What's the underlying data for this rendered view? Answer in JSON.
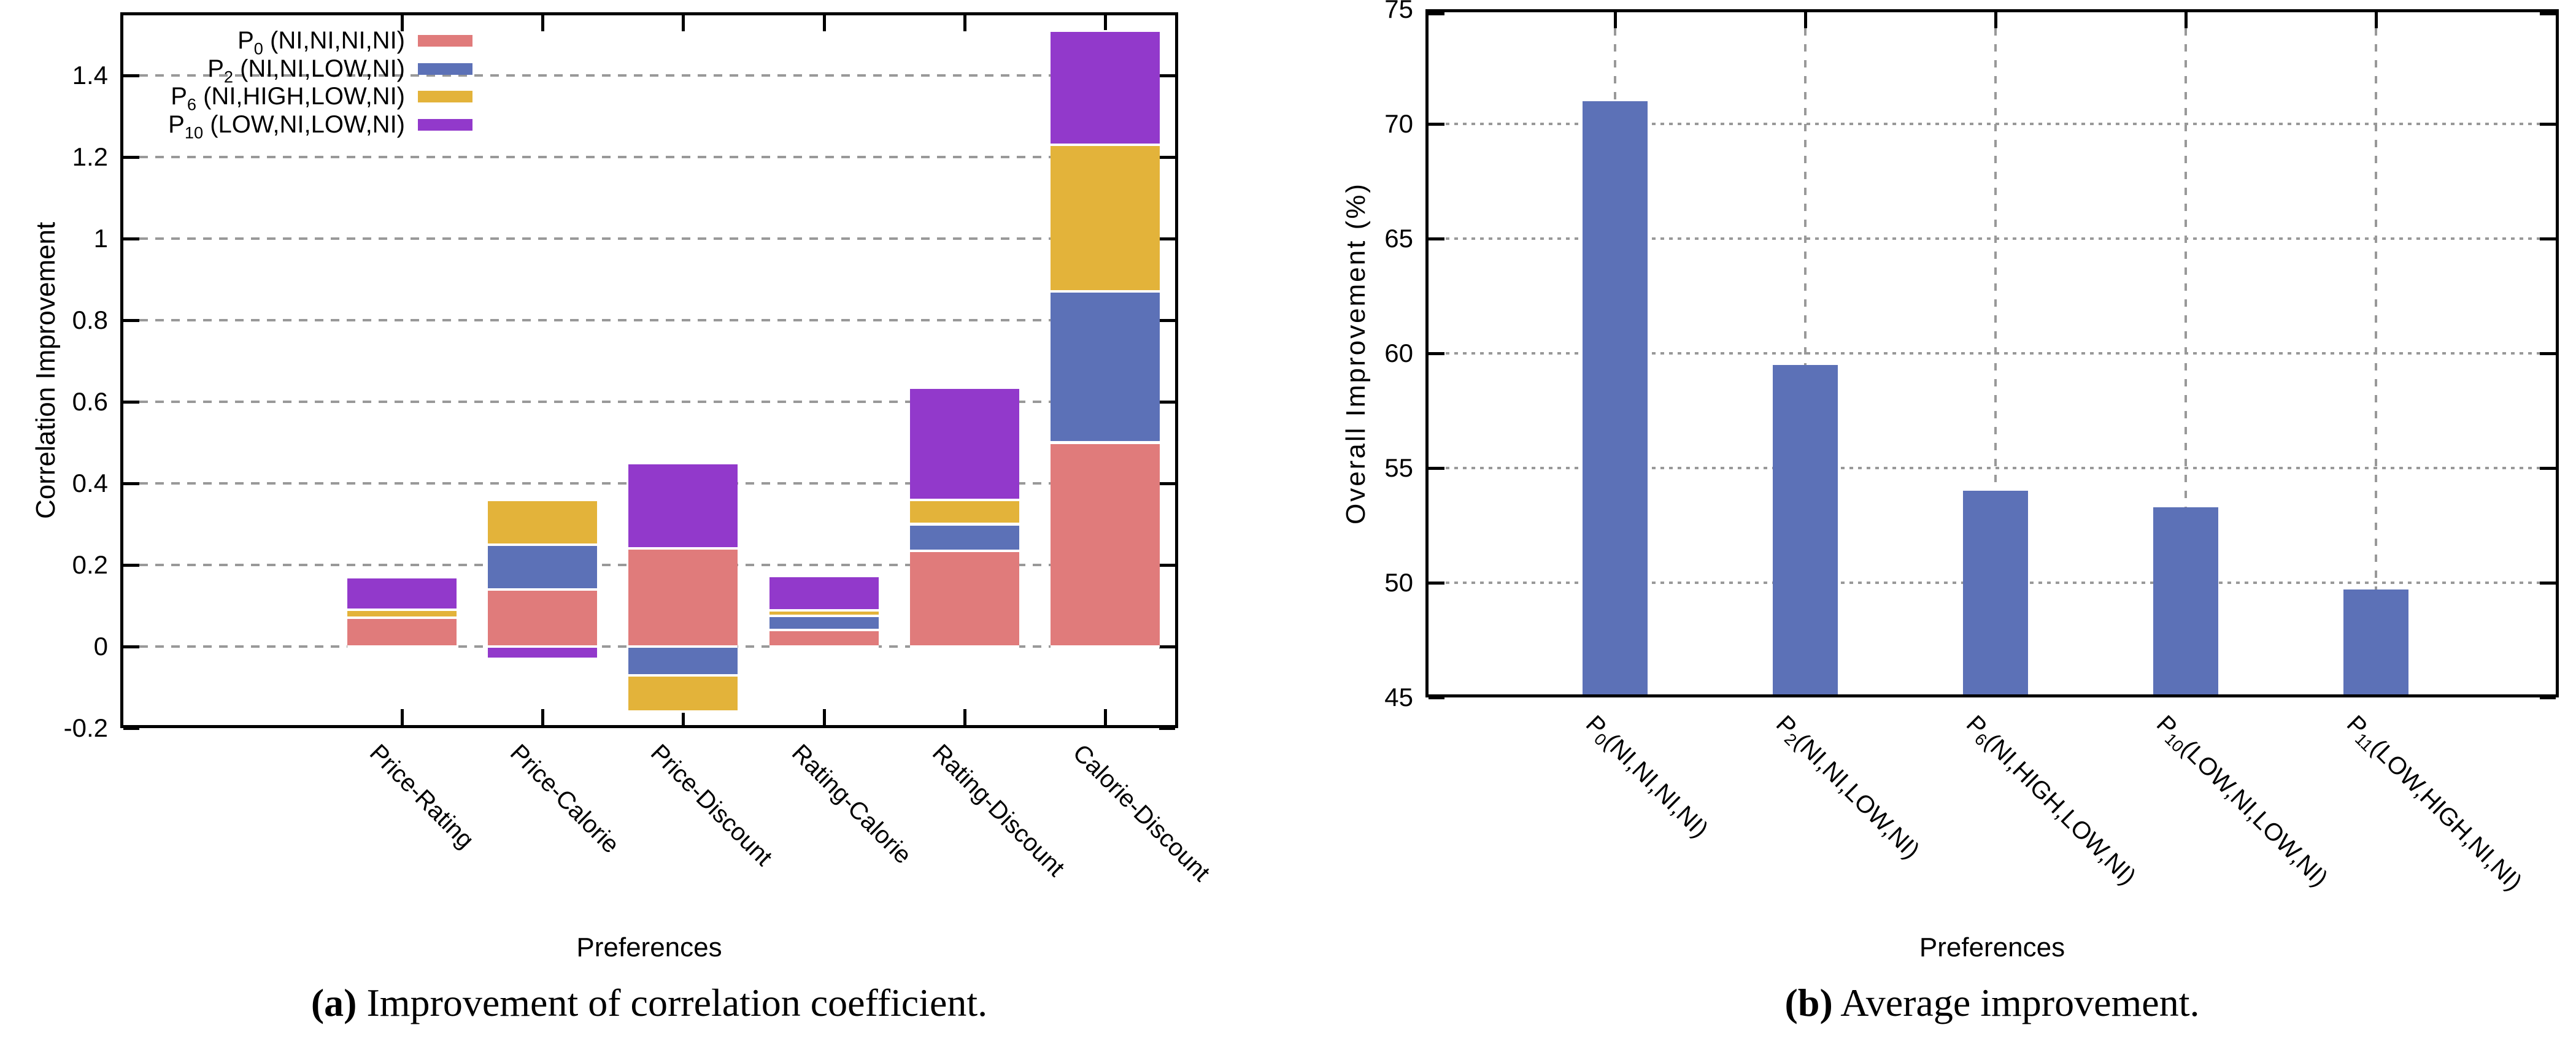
{
  "page": {
    "background": "#ffffff"
  },
  "captions": {
    "a": {
      "tag": "(a)",
      "text": " Improvement of correlation coefficient."
    },
    "b": {
      "tag": "(b)",
      "text": " Average improvement."
    }
  },
  "colors": {
    "p0_pink": "#e07b7b",
    "p2_blue": "#5c71b7",
    "p6_yellow": "#e3b33a",
    "p10_purple": "#9239cb",
    "right_bar_blue": "#5c71b7",
    "grid_gray": "#999999",
    "axis_black": "#000000"
  },
  "chart_data": [
    {
      "type": "bar",
      "subtype": "stacked",
      "panel": "a",
      "caption": "(a) Improvement of correlation coefficient.",
      "xlabel": "Preferences",
      "ylabel": "Correlation Improvement",
      "ylim": [
        -0.2,
        1.555
      ],
      "grid": "y-only-dashed",
      "legend_position": "top-left-inside",
      "yticks": [
        {
          "v": -0.2,
          "label": "-0.2"
        },
        {
          "v": 0,
          "label": "0"
        },
        {
          "v": 0.2,
          "label": "0.2"
        },
        {
          "v": 0.4,
          "label": "0.4"
        },
        {
          "v": 0.6,
          "label": "0.6"
        },
        {
          "v": 0.8,
          "label": "0.8"
        },
        {
          "v": 1,
          "label": "1"
        },
        {
          "v": 1.2,
          "label": "1.2"
        },
        {
          "v": 1.4,
          "label": "1.4"
        }
      ],
      "categories": [
        "Price-Rating",
        "Price-Calorie",
        "Price-Discount",
        "Rating-Calorie",
        "Rating-Discount",
        "Calorie-Discount"
      ],
      "series": [
        {
          "name": "P0 (NI,NI,NI,NI)",
          "label": {
            "p": "P",
            "sub": "0",
            "args": " (NI,NI,NI,NI)"
          },
          "color": "#e07b7b",
          "values": [
            0.07,
            0.14,
            0.24,
            0.04,
            0.235,
            0.5
          ]
        },
        {
          "name": "P2 (NI,NI,LOW,NI)",
          "label": {
            "p": "P",
            "sub": "2",
            "args": " (NI,NI,LOW,NI)"
          },
          "color": "#5c71b7",
          "values": [
            0,
            0.11,
            -0.07,
            0.035,
            0.065,
            0.37
          ]
        },
        {
          "name": "P6 (NI,HIGH,LOW,NI)",
          "label": {
            "p": "P",
            "sub": "6",
            "args": " (NI,HIGH,LOW,NI)"
          },
          "color": "#e3b33a",
          "values": [
            0.02,
            0.11,
            -0.09,
            0.013,
            0.06,
            0.36
          ]
        },
        {
          "name": "P10 (LOW,NI,LOW,NI)",
          "label": {
            "p": "P",
            "sub": "10",
            "args": " (LOW,NI,LOW,NI)"
          },
          "color": "#9239cb",
          "values": [
            0.08,
            -0.03,
            0.21,
            0.085,
            0.275,
            0.28
          ]
        }
      ],
      "stacked_tops": [
        0.17,
        0.36,
        0.45,
        0.173,
        0.635,
        1.51
      ],
      "stacked_bottoms": [
        0,
        -0.03,
        -0.16,
        0,
        0,
        0
      ]
    },
    {
      "type": "bar",
      "subtype": "simple",
      "panel": "b",
      "caption": "(b) Average improvement.",
      "xlabel": "Preferences",
      "ylabel": "Overall Improvement (%)",
      "ylim": [
        45,
        75
      ],
      "grid": "x-dashed-and-y-dotted",
      "bar_color": "#5c71b7",
      "yticks": [
        {
          "v": 45,
          "label": "45"
        },
        {
          "v": 50,
          "label": "50"
        },
        {
          "v": 55,
          "label": "55"
        },
        {
          "v": 60,
          "label": "60"
        },
        {
          "v": 65,
          "label": "65"
        },
        {
          "v": 70,
          "label": "70"
        },
        {
          "v": 75,
          "label": "75"
        }
      ],
      "categories": [
        {
          "p": "P",
          "sub": "0",
          "args": "(NI,NI,NI,NI)",
          "name": "P0(NI,NI,NI,NI)"
        },
        {
          "p": "P",
          "sub": "2",
          "args": "(NI,NI,LOW,NI)",
          "name": "P2(NI,NI,LOW,NI)"
        },
        {
          "p": "P",
          "sub": "6",
          "args": "(NI,HIGH,LOW,NI)",
          "name": "P6(NI,HIGH,LOW,NI)"
        },
        {
          "p": "P",
          "sub": "10",
          "args": "(LOW,NI,LOW,NI)",
          "name": "P10(LOW,NI,LOW,NI)"
        },
        {
          "p": "P",
          "sub": "11",
          "args": "(LOW,HIGH,NI,NI)",
          "name": "P11(LOW,HIGH,NI,NI)"
        }
      ],
      "values": [
        71.0,
        59.5,
        54.0,
        53.3,
        49.7
      ]
    }
  ]
}
